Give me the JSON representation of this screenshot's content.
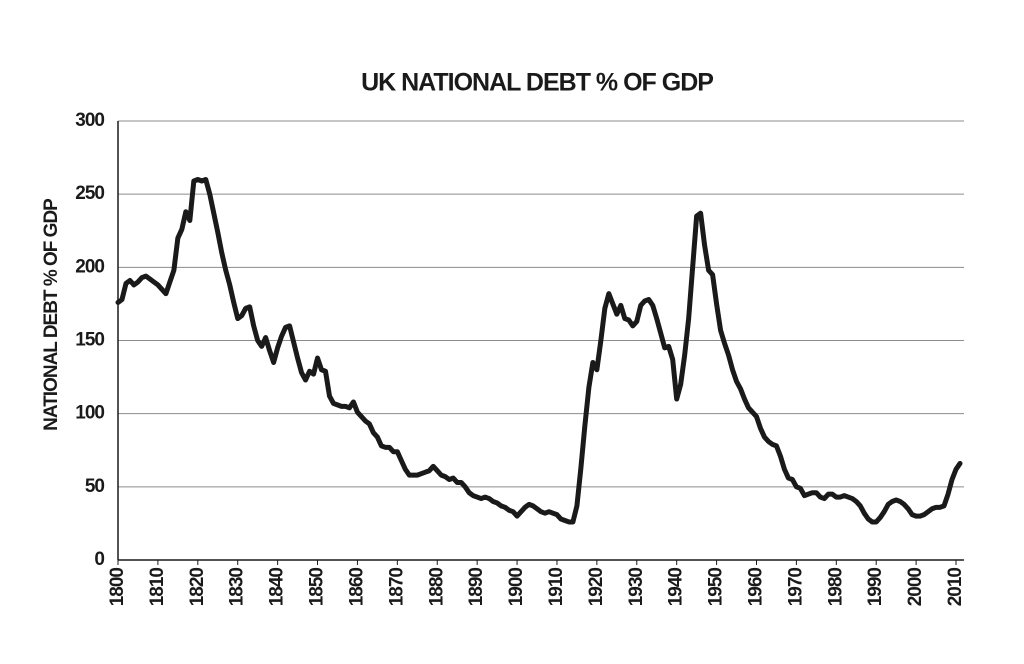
{
  "chart_data": {
    "type": "line",
    "title": "UK NATIONAL DEBT % OF GDP",
    "y_label": "NATIONAL DEBT % OF GDP",
    "x": [
      1800,
      1801,
      1802,
      1803,
      1804,
      1805,
      1806,
      1807,
      1808,
      1809,
      1810,
      1811,
      1812,
      1813,
      1814,
      1815,
      1816,
      1817,
      1818,
      1819,
      1820,
      1821,
      1822,
      1823,
      1824,
      1825,
      1826,
      1827,
      1828,
      1829,
      1830,
      1831,
      1832,
      1833,
      1834,
      1835,
      1836,
      1837,
      1838,
      1839,
      1840,
      1841,
      1842,
      1843,
      1844,
      1845,
      1846,
      1847,
      1848,
      1849,
      1850,
      1851,
      1852,
      1853,
      1854,
      1855,
      1856,
      1857,
      1858,
      1859,
      1860,
      1861,
      1862,
      1863,
      1864,
      1865,
      1866,
      1867,
      1868,
      1869,
      1870,
      1871,
      1872,
      1873,
      1874,
      1875,
      1876,
      1877,
      1878,
      1879,
      1880,
      1881,
      1882,
      1883,
      1884,
      1885,
      1886,
      1887,
      1888,
      1889,
      1890,
      1891,
      1892,
      1893,
      1894,
      1895,
      1896,
      1897,
      1898,
      1899,
      1900,
      1901,
      1902,
      1903,
      1904,
      1905,
      1906,
      1907,
      1908,
      1909,
      1910,
      1911,
      1912,
      1913,
      1914,
      1915,
      1916,
      1917,
      1918,
      1919,
      1920,
      1921,
      1922,
      1923,
      1924,
      1925,
      1926,
      1927,
      1928,
      1929,
      1930,
      1931,
      1932,
      1933,
      1934,
      1935,
      1936,
      1937,
      1938,
      1939,
      1940,
      1941,
      1942,
      1943,
      1944,
      1945,
      1946,
      1947,
      1948,
      1949,
      1950,
      1951,
      1952,
      1953,
      1954,
      1955,
      1956,
      1957,
      1958,
      1959,
      1960,
      1961,
      1962,
      1963,
      1964,
      1965,
      1966,
      1967,
      1968,
      1969,
      1970,
      1971,
      1972,
      1973,
      1974,
      1975,
      1976,
      1977,
      1978,
      1979,
      1980,
      1981,
      1982,
      1983,
      1984,
      1985,
      1986,
      1987,
      1988,
      1989,
      1990,
      1991,
      1992,
      1993,
      1994,
      1995,
      1996,
      1997,
      1998,
      1999,
      2000,
      2001,
      2002,
      2003,
      2004,
      2005,
      2006,
      2007,
      2008,
      2009,
      2010,
      2011
    ],
    "values": [
      176,
      178,
      189,
      191,
      188,
      190,
      193,
      194,
      192,
      190,
      188,
      185,
      182,
      190,
      198,
      220,
      226,
      238,
      232,
      259,
      260,
      259,
      260,
      250,
      237,
      224,
      210,
      198,
      188,
      176,
      165,
      167,
      172,
      173,
      160,
      150,
      146,
      152,
      143,
      135,
      145,
      153,
      159,
      160,
      149,
      138,
      128,
      123,
      129,
      127,
      138,
      130,
      129,
      112,
      107,
      106,
      105,
      105,
      104,
      108,
      101,
      98,
      95,
      93,
      87,
      84,
      78,
      77,
      77,
      74,
      74,
      68,
      62,
      58,
      58,
      58,
      59,
      60,
      61,
      64,
      61,
      58,
      57,
      55,
      56,
      53,
      53,
      50,
      46,
      44,
      43,
      42,
      43,
      42,
      40,
      39,
      37,
      36,
      34,
      33,
      30,
      33,
      36,
      38,
      37,
      35,
      33,
      32,
      33,
      32,
      31,
      28,
      27,
      26,
      26,
      37,
      63,
      92,
      118,
      135,
      130,
      150,
      172,
      182,
      175,
      168,
      174,
      165,
      164,
      160,
      163,
      174,
      177,
      178,
      174,
      165,
      155,
      145,
      146,
      137,
      110,
      120,
      140,
      165,
      200,
      235,
      237,
      215,
      198,
      195,
      175,
      157,
      148,
      140,
      130,
      122,
      117,
      110,
      104,
      101,
      98,
      90,
      84,
      81,
      79,
      78,
      71,
      62,
      56,
      55,
      50,
      49,
      44,
      45,
      46,
      46,
      43,
      42,
      45,
      45,
      43,
      43,
      44,
      43,
      42,
      40,
      37,
      32,
      28,
      26,
      26,
      29,
      33,
      38,
      40,
      41,
      40,
      38,
      35,
      31,
      30,
      30,
      31,
      33,
      35,
      36,
      36,
      37,
      45,
      55,
      62,
      66
    ],
    "color": "#1a1a1a",
    "xlim": [
      1800,
      2012
    ],
    "xticks": [
      1800,
      1810,
      1820,
      1830,
      1840,
      1850,
      1860,
      1870,
      1880,
      1890,
      1900,
      1910,
      1920,
      1930,
      1940,
      1950,
      1960,
      1970,
      1980,
      1990,
      2000,
      2010
    ],
    "ylim": [
      0,
      300
    ],
    "yticks": [
      0,
      50,
      100,
      150,
      200,
      250,
      300
    ],
    "grid": true
  }
}
